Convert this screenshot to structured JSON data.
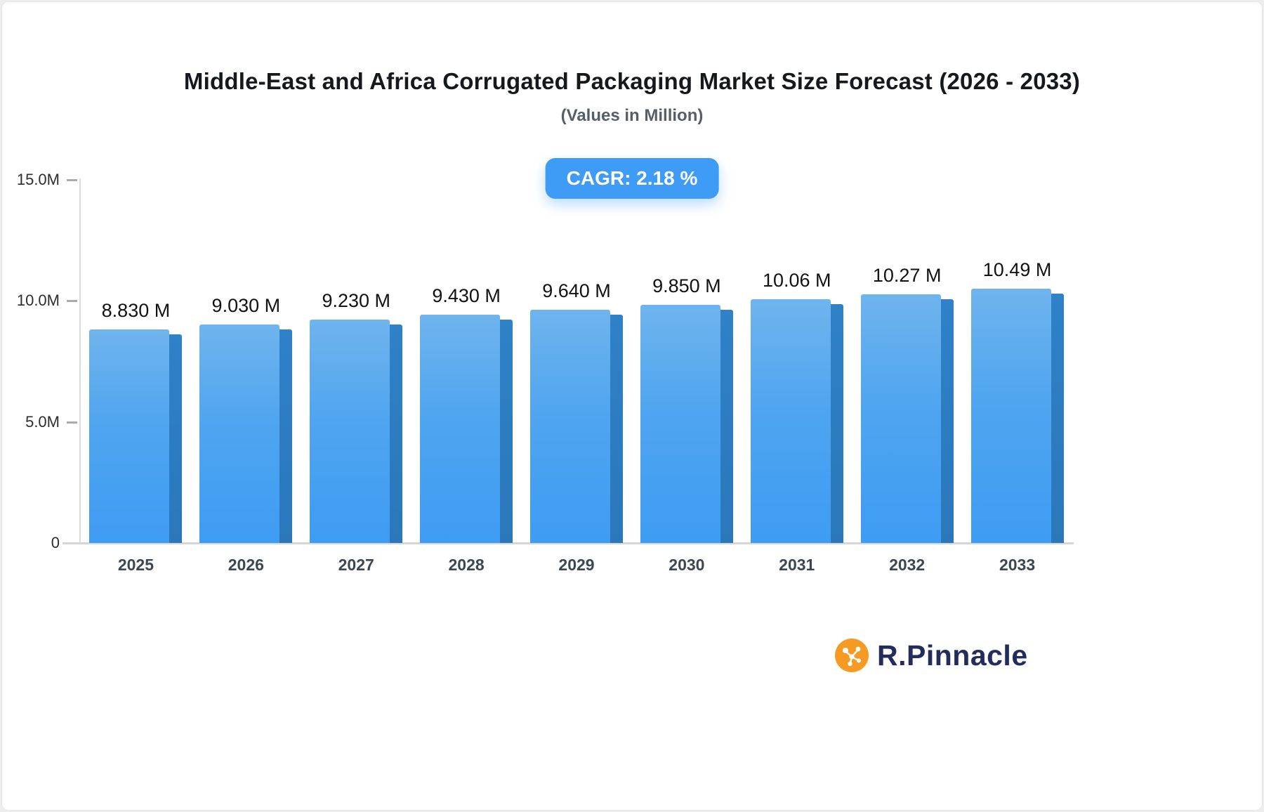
{
  "title": "Middle-East and Africa Corrugated Packaging Market Size Forecast (2026 - 2033)",
  "subtitle": "(Values in Million)",
  "cagr_label": "CAGR: 2.18 %",
  "logo": {
    "text": "R.Pinnacle",
    "icon": "network-molecule-icon",
    "icon_color": "#f59a23",
    "text_color": "#232c5c"
  },
  "colors": {
    "bar_front_top": "#6fb4ee",
    "bar_front_bottom": "#3e9cf3",
    "bar_side": "#2b77ba",
    "badge_bg": "#3f9cf6",
    "axis_line": "#d6d6d6",
    "title_text": "#15181d",
    "subtitle_text": "#565e69"
  },
  "chart_data": {
    "type": "bar",
    "title": "Middle-East and Africa Corrugated Packaging Market Size Forecast (2026 - 2033)",
    "subtitle": "(Values in Million)",
    "xlabel": "",
    "ylabel": "",
    "unit": "Million",
    "cagr_percent": 2.18,
    "ylim": [
      0,
      15
    ],
    "grid": false,
    "legend": "none",
    "categories": [
      "2025",
      "2026",
      "2027",
      "2028",
      "2029",
      "2030",
      "2031",
      "2032",
      "2033"
    ],
    "values": [
      8.83,
      9.03,
      9.23,
      9.43,
      9.64,
      9.85,
      10.06,
      10.27,
      10.49
    ],
    "value_labels": [
      "8.830 M",
      "9.030 M",
      "9.230 M",
      "9.430 M",
      "9.640 M",
      "9.850 M",
      "10.06 M",
      "10.27 M",
      "10.49 M"
    ],
    "yticks": [
      {
        "value": 0,
        "label": "0"
      },
      {
        "value": 5,
        "label": "5.0M"
      },
      {
        "value": 10,
        "label": "10.0M"
      },
      {
        "value": 15,
        "label": "15.0M"
      }
    ]
  }
}
